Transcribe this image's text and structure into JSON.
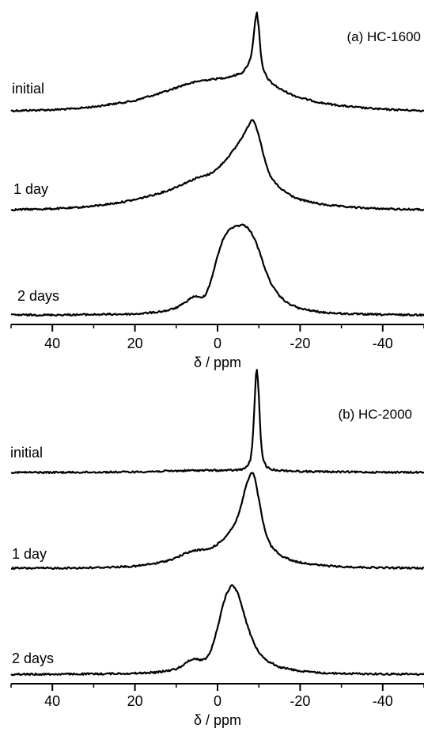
{
  "colors": {
    "line": "#000000",
    "background": "#ffffff"
  },
  "chart_data": [
    {
      "type": "line",
      "title": "(a) HC-1600",
      "xlabel": "δ / ppm",
      "ylabel": "",
      "xlim": [
        50,
        -50
      ],
      "x_reversed": true,
      "xticks": [
        40,
        20,
        0,
        -20,
        -40
      ],
      "xtick_labels": [
        "40",
        "20",
        "0",
        "-20",
        "-40"
      ],
      "grid": false,
      "series": [
        {
          "name": "initial",
          "points": [
            [
              50,
              0.0
            ],
            [
              45,
              0.005
            ],
            [
              40,
              0.01
            ],
            [
              35,
              0.02
            ],
            [
              30,
              0.04
            ],
            [
              25,
              0.07
            ],
            [
              20,
              0.1
            ],
            [
              17,
              0.14
            ],
            [
              15,
              0.16
            ],
            [
              12,
              0.2
            ],
            [
              10,
              0.23
            ],
            [
              8,
              0.26
            ],
            [
              6,
              0.28
            ],
            [
              4,
              0.3
            ],
            [
              2,
              0.31
            ],
            [
              0,
              0.32
            ],
            [
              -2,
              0.33
            ],
            [
              -4,
              0.35
            ],
            [
              -6,
              0.38
            ],
            [
              -7,
              0.43
            ],
            [
              -8,
              0.52
            ],
            [
              -8.5,
              0.65
            ],
            [
              -9,
              0.85
            ],
            [
              -9.5,
              1.0
            ],
            [
              -10,
              0.82
            ],
            [
              -10.5,
              0.55
            ],
            [
              -11,
              0.42
            ],
            [
              -12,
              0.33
            ],
            [
              -13,
              0.28
            ],
            [
              -15,
              0.22
            ],
            [
              -18,
              0.16
            ],
            [
              -20,
              0.13
            ],
            [
              -25,
              0.08
            ],
            [
              -30,
              0.05
            ],
            [
              -35,
              0.03
            ],
            [
              -40,
              0.015
            ],
            [
              -45,
              0.008
            ],
            [
              -50,
              0.0
            ]
          ]
        },
        {
          "name": "1 day",
          "points": [
            [
              50,
              0.0
            ],
            [
              45,
              0.005
            ],
            [
              40,
              0.01
            ],
            [
              35,
              0.02
            ],
            [
              30,
              0.04
            ],
            [
              25,
              0.07
            ],
            [
              20,
              0.11
            ],
            [
              15,
              0.17
            ],
            [
              12,
              0.21
            ],
            [
              10,
              0.25
            ],
            [
              8,
              0.29
            ],
            [
              6,
              0.33
            ],
            [
              5,
              0.35
            ],
            [
              4,
              0.36
            ],
            [
              2,
              0.39
            ],
            [
              0,
              0.45
            ],
            [
              -2,
              0.55
            ],
            [
              -4,
              0.66
            ],
            [
              -6,
              0.8
            ],
            [
              -7,
              0.88
            ],
            [
              -8,
              0.97
            ],
            [
              -8.5,
              1.0
            ],
            [
              -9,
              0.96
            ],
            [
              -10,
              0.82
            ],
            [
              -11,
              0.62
            ],
            [
              -12,
              0.46
            ],
            [
              -13,
              0.35
            ],
            [
              -15,
              0.24
            ],
            [
              -18,
              0.15
            ],
            [
              -20,
              0.11
            ],
            [
              -25,
              0.06
            ],
            [
              -30,
              0.035
            ],
            [
              -35,
              0.02
            ],
            [
              -40,
              0.01
            ],
            [
              -45,
              0.005
            ],
            [
              -50,
              0.0
            ]
          ]
        },
        {
          "name": "2 days",
          "points": [
            [
              50,
              0.0
            ],
            [
              40,
              0.0
            ],
            [
              30,
              0.005
            ],
            [
              20,
              0.01
            ],
            [
              15,
              0.03
            ],
            [
              12,
              0.05
            ],
            [
              10,
              0.08
            ],
            [
              8,
              0.13
            ],
            [
              7,
              0.17
            ],
            [
              6,
              0.2
            ],
            [
              5.5,
              0.21
            ],
            [
              5,
              0.2
            ],
            [
              4,
              0.19
            ],
            [
              3,
              0.22
            ],
            [
              2,
              0.32
            ],
            [
              1,
              0.48
            ],
            [
              0,
              0.65
            ],
            [
              -1,
              0.8
            ],
            [
              -2,
              0.9
            ],
            [
              -3,
              0.95
            ],
            [
              -4,
              0.98
            ],
            [
              -5,
              0.99
            ],
            [
              -6,
              1.0
            ],
            [
              -7,
              0.98
            ],
            [
              -8,
              0.93
            ],
            [
              -9,
              0.84
            ],
            [
              -10,
              0.72
            ],
            [
              -11,
              0.58
            ],
            [
              -12,
              0.45
            ],
            [
              -13,
              0.35
            ],
            [
              -14,
              0.27
            ],
            [
              -15,
              0.21
            ],
            [
              -17,
              0.13
            ],
            [
              -20,
              0.07
            ],
            [
              -25,
              0.03
            ],
            [
              -30,
              0.015
            ],
            [
              -35,
              0.008
            ],
            [
              -40,
              0.004
            ],
            [
              -50,
              0.0
            ]
          ]
        }
      ]
    },
    {
      "type": "line",
      "title": "(b) HC-2000",
      "xlabel": "δ / ppm",
      "ylabel": "",
      "xlim": [
        50,
        -50
      ],
      "x_reversed": true,
      "xticks": [
        40,
        20,
        0,
        -20,
        -40
      ],
      "xtick_labels": [
        "40",
        "20",
        "0",
        "-20",
        "-40"
      ],
      "grid": false,
      "series": [
        {
          "name": "initial",
          "points": [
            [
              50,
              0.0
            ],
            [
              40,
              0.0
            ],
            [
              30,
              0.002
            ],
            [
              20,
              0.005
            ],
            [
              15,
              0.01
            ],
            [
              10,
              0.015
            ],
            [
              5,
              0.02
            ],
            [
              0,
              0.02
            ],
            [
              -3,
              0.02
            ],
            [
              -5,
              0.025
            ],
            [
              -6,
              0.03
            ],
            [
              -7,
              0.05
            ],
            [
              -8,
              0.12
            ],
            [
              -8.5,
              0.3
            ],
            [
              -9,
              0.7
            ],
            [
              -9.3,
              0.95
            ],
            [
              -9.6,
              1.0
            ],
            [
              -10,
              0.75
            ],
            [
              -10.5,
              0.3
            ],
            [
              -11,
              0.12
            ],
            [
              -12,
              0.05
            ],
            [
              -13,
              0.03
            ],
            [
              -15,
              0.02
            ],
            [
              -20,
              0.01
            ],
            [
              -30,
              0.005
            ],
            [
              -40,
              0.002
            ],
            [
              -50,
              0.0
            ]
          ]
        },
        {
          "name": "1 day",
          "points": [
            [
              50,
              0.0
            ],
            [
              40,
              0.0
            ],
            [
              30,
              0.005
            ],
            [
              20,
              0.02
            ],
            [
              15,
              0.05
            ],
            [
              12,
              0.08
            ],
            [
              10,
              0.11
            ],
            [
              8,
              0.15
            ],
            [
              6,
              0.18
            ],
            [
              5,
              0.19
            ],
            [
              4,
              0.19
            ],
            [
              2,
              0.2
            ],
            [
              0,
              0.25
            ],
            [
              -2,
              0.33
            ],
            [
              -4,
              0.45
            ],
            [
              -5,
              0.55
            ],
            [
              -6,
              0.7
            ],
            [
              -7,
              0.88
            ],
            [
              -8,
              0.98
            ],
            [
              -8.5,
              1.0
            ],
            [
              -9,
              0.95
            ],
            [
              -10,
              0.72
            ],
            [
              -11,
              0.48
            ],
            [
              -12,
              0.32
            ],
            [
              -13,
              0.23
            ],
            [
              -15,
              0.14
            ],
            [
              -18,
              0.08
            ],
            [
              -20,
              0.06
            ],
            [
              -25,
              0.03
            ],
            [
              -30,
              0.015
            ],
            [
              -40,
              0.005
            ],
            [
              -50,
              0.0
            ]
          ]
        },
        {
          "name": "2 days",
          "points": [
            [
              50,
              0.0
            ],
            [
              40,
              0.0
            ],
            [
              30,
              0.003
            ],
            [
              20,
              0.01
            ],
            [
              15,
              0.02
            ],
            [
              12,
              0.04
            ],
            [
              10,
              0.06
            ],
            [
              8,
              0.11
            ],
            [
              7,
              0.15
            ],
            [
              6,
              0.17
            ],
            [
              5.5,
              0.175
            ],
            [
              5,
              0.17
            ],
            [
              4,
              0.16
            ],
            [
              3,
              0.17
            ],
            [
              2,
              0.22
            ],
            [
              1,
              0.35
            ],
            [
              0,
              0.52
            ],
            [
              -1,
              0.72
            ],
            [
              -2,
              0.88
            ],
            [
              -3,
              0.97
            ],
            [
              -3.5,
              1.0
            ],
            [
              -4,
              0.98
            ],
            [
              -5,
              0.9
            ],
            [
              -6,
              0.75
            ],
            [
              -7,
              0.58
            ],
            [
              -8,
              0.44
            ],
            [
              -9,
              0.33
            ],
            [
              -10,
              0.25
            ],
            [
              -12,
              0.15
            ],
            [
              -15,
              0.08
            ],
            [
              -20,
              0.035
            ],
            [
              -25,
              0.015
            ],
            [
              -30,
              0.008
            ],
            [
              -40,
              0.003
            ],
            [
              -50,
              0.0
            ]
          ]
        }
      ]
    }
  ]
}
